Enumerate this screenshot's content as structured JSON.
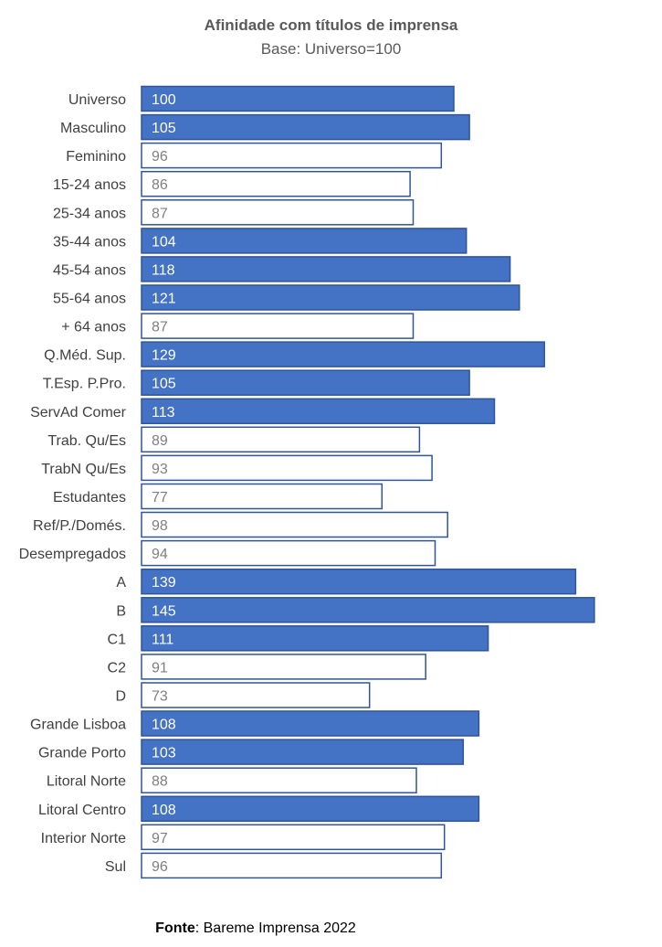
{
  "colors": {
    "highlight_fill": "#4472C4",
    "normal_fill": "#FFFFFF",
    "bar_stroke": "#2F5597",
    "highlight_label": "#FFFFFF",
    "normal_label": "#7F7F7F",
    "category_text": "#404040",
    "title_text": "#595959"
  },
  "source": {
    "label": "Fonte",
    "separator": ":",
    "text": " Bareme Imprensa 2022"
  },
  "chart_data": {
    "type": "bar",
    "orientation": "horizontal",
    "title": "Afinidade com títulos de imprensa",
    "subtitle": "Base: Universo=100",
    "xlabel": "",
    "ylabel": "",
    "xlim": [
      0,
      145
    ],
    "grid": false,
    "legend": "none",
    "baseline_value": 100,
    "categories": [
      "Universo",
      "Masculino",
      "Feminino",
      "15-24 anos",
      "25-34 anos",
      "35-44 anos",
      "45-54 anos",
      "55-64 anos",
      "+ 64 anos",
      "Q.Méd. Sup.",
      "T.Esp. P.Pro.",
      "ServAd Comer",
      "Trab. Qu/Es",
      "TrabN Qu/Es",
      "Estudantes",
      "Ref/P./Domés.",
      "Desempregados",
      "A",
      "B",
      "C1",
      "C2",
      "D",
      "Grande Lisboa",
      "Grande Porto",
      "Litoral Norte",
      "Litoral Centro",
      "Interior Norte",
      "Sul"
    ],
    "values": [
      100,
      105,
      96,
      86,
      87,
      104,
      118,
      121,
      87,
      129,
      105,
      113,
      89,
      93,
      77,
      98,
      94,
      139,
      145,
      111,
      91,
      73,
      108,
      103,
      88,
      108,
      97,
      96
    ],
    "value_labels": [
      "100",
      "105",
      "96",
      "86",
      "87",
      "104",
      "118",
      "121",
      "87",
      "129",
      "105",
      "113",
      "89",
      "93",
      "77",
      "98",
      "94",
      "139",
      "145",
      "111",
      "91",
      "73",
      "108",
      "103",
      "88",
      "108",
      "97",
      "96"
    ]
  }
}
